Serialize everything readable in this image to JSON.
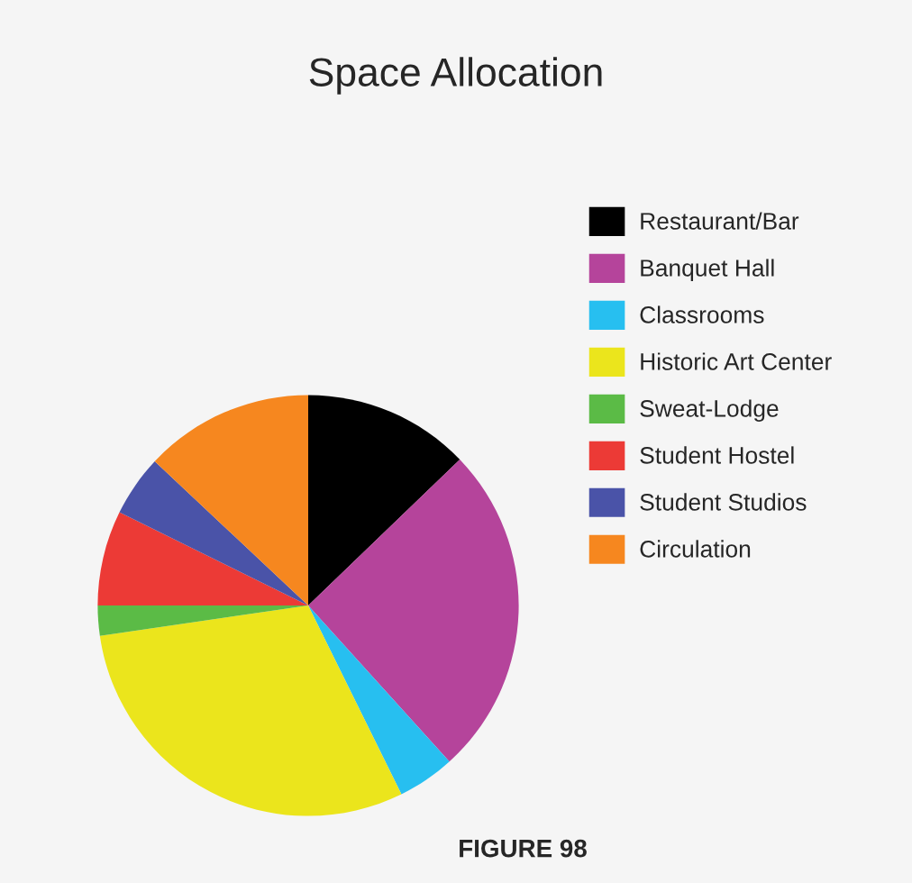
{
  "chart_data": {
    "type": "pie",
    "title": "Space Allocation",
    "categories": [
      "Restaurant/Bar",
      "Banquet Hall",
      "Classrooms",
      "Historic Art Center",
      "Sweat-Lodge",
      "Student Hostel",
      "Student Studios",
      "Circulation"
    ],
    "values": [
      12.8,
      25.5,
      4.4,
      30,
      2.3,
      7.3,
      4.7,
      13
    ],
    "colors": [
      "#000000",
      "#b5449b",
      "#27bff0",
      "#ebe51c",
      "#5bbb46",
      "#ec3a36",
      "#4a53a8",
      "#f6871f"
    ],
    "legend": "right",
    "annotations": [
      "FIGURE 98"
    ]
  }
}
